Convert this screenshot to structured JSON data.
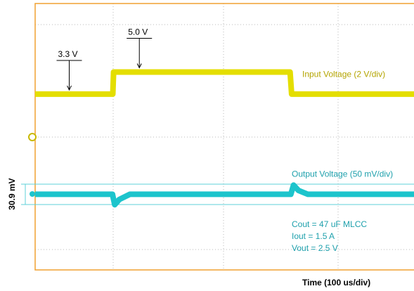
{
  "chart_data": {
    "type": "line",
    "xlabel": "Time (100 us/div)",
    "xlim": [
      0,
      1000
    ],
    "ylim": [
      -10,
      10
    ],
    "y2lim": [
      -112,
      288
    ],
    "cursor_label": "30.9 mV",
    "series": [
      {
        "name": "Input Voltage (2 V/div)",
        "color": "#e4de00",
        "label_color": "#b4a400",
        "x": [
          0,
          205,
          207,
          673,
          677,
          1000
        ],
        "values": [
          3.3,
          3.3,
          5.0,
          5.0,
          3.3,
          3.3
        ]
      },
      {
        "name": "Output Voltage (50 mV/div)",
        "color": "#1cc4cc",
        "label_color": "#1ea0ac",
        "axis": "y2",
        "x": [
          0,
          204,
          210,
          222,
          250,
          675,
          682,
          695,
          720,
          1000
        ],
        "values": [
          0,
          0,
          -16,
          -8,
          0,
          0,
          14,
          6,
          0,
          0
        ]
      }
    ],
    "annotations": [
      {
        "text": "3.3 V",
        "x": 90,
        "y": 3.3
      },
      {
        "text": "5.0 V",
        "x": 275,
        "y": 5.0
      }
    ],
    "notes": [
      "Cout = 47 uF MLCC",
      "Iout = 1.5 A",
      "Vout = 2.5 V"
    ]
  }
}
